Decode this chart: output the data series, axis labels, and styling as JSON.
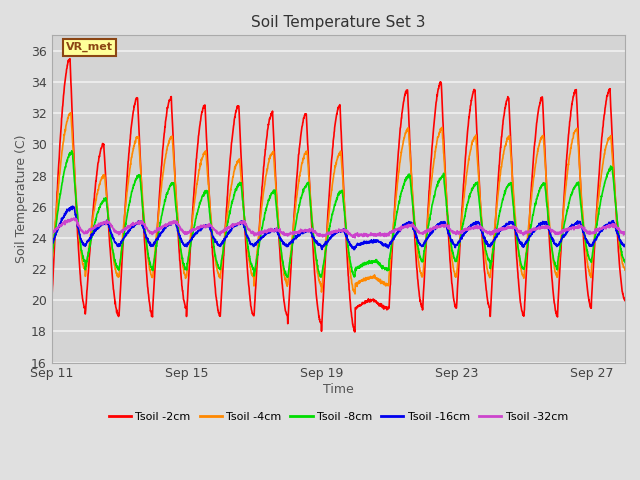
{
  "title": "Soil Temperature Set 3",
  "xlabel": "Time",
  "ylabel": "Soil Temperature (C)",
  "ylim": [
    16,
    37
  ],
  "yticks": [
    16,
    18,
    20,
    22,
    24,
    26,
    28,
    30,
    32,
    34,
    36
  ],
  "xtick_labels": [
    "Sep 11",
    "Sep 15",
    "Sep 19",
    "Sep 23",
    "Sep 27"
  ],
  "xtick_positions": [
    0,
    4,
    8,
    12,
    16
  ],
  "fig_bg": "#e0e0e0",
  "plot_bg": "#d4d4d4",
  "grid_color": "#f0f0f0",
  "annotation_text": "VR_met",
  "annotation_bg": "#ffff99",
  "annotation_border": "#8b4513",
  "series": {
    "tsoil_2cm": {
      "color": "#ff0000",
      "label": "Tsoil -2cm",
      "lw": 1.2
    },
    "tsoil_4cm": {
      "color": "#ff8800",
      "label": "Tsoil -4cm",
      "lw": 1.2
    },
    "tsoil_8cm": {
      "color": "#00dd00",
      "label": "Tsoil -8cm",
      "lw": 1.2
    },
    "tsoil_16cm": {
      "color": "#0000ee",
      "label": "Tsoil -16cm",
      "lw": 1.2
    },
    "tsoil_32cm": {
      "color": "#cc44cc",
      "label": "Tsoil -32cm",
      "lw": 1.2
    }
  },
  "n_days": 17,
  "ppd": 144,
  "base_temp": 24.0,
  "peaks_2cm": [
    35.5,
    19.5,
    30.0,
    19.0,
    33.0,
    19.0,
    33.0,
    19.5,
    32.5,
    19.0,
    32.5,
    19.0,
    32.0,
    19.0,
    32.0,
    18.5,
    32.5,
    18.0,
    20.0,
    19.5,
    33.5,
    19.5,
    34.0,
    19.5,
    33.5,
    19.5,
    33.0,
    19.0,
    33.0,
    19.0,
    33.5,
    19.5,
    33.5,
    20.0
  ],
  "peaks_4cm": [
    32.0,
    22.0,
    28.0,
    21.5,
    30.5,
    21.5,
    30.5,
    21.5,
    29.5,
    21.5,
    29.0,
    21.5,
    29.5,
    21.0,
    29.5,
    21.0,
    29.5,
    20.5,
    21.5,
    21.0,
    31.0,
    21.5,
    31.0,
    21.5,
    30.5,
    21.5,
    30.5,
    21.5,
    30.5,
    21.5,
    31.0,
    21.5,
    30.5,
    22.0
  ],
  "peaks_8cm": [
    29.5,
    22.5,
    26.5,
    22.0,
    28.0,
    22.0,
    27.5,
    22.0,
    27.0,
    22.0,
    27.5,
    22.0,
    27.0,
    21.5,
    27.5,
    21.5,
    27.0,
    21.5,
    22.5,
    22.0,
    28.0,
    22.5,
    28.0,
    22.5,
    27.5,
    22.5,
    27.5,
    22.0,
    27.5,
    22.0,
    27.5,
    22.5,
    28.5,
    22.5
  ],
  "peaks_16cm": [
    26.0,
    23.5,
    25.0,
    23.5,
    25.0,
    23.5,
    25.0,
    23.5,
    24.8,
    23.5,
    25.0,
    23.5,
    24.5,
    23.5,
    24.5,
    23.5,
    24.5,
    23.3,
    23.8,
    23.5,
    25.0,
    23.5,
    25.0,
    23.5,
    25.0,
    23.5,
    25.0,
    23.5,
    25.0,
    23.5,
    25.0,
    23.5,
    25.0,
    23.5
  ],
  "peaks_32cm": [
    25.2,
    24.3,
    25.0,
    24.3,
    25.0,
    24.3,
    25.0,
    24.3,
    24.8,
    24.3,
    25.0,
    24.3,
    24.5,
    24.2,
    24.5,
    24.2,
    24.5,
    24.1,
    24.2,
    24.2,
    24.8,
    24.3,
    24.8,
    24.3,
    24.7,
    24.3,
    24.7,
    24.3,
    24.7,
    24.3,
    24.7,
    24.3,
    24.8,
    24.3
  ]
}
